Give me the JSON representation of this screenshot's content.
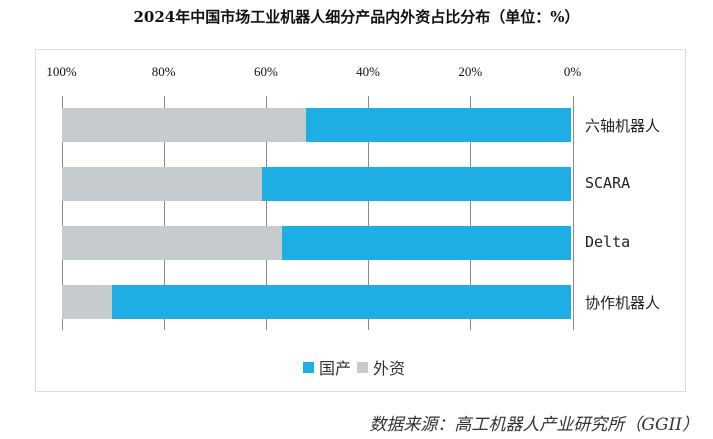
{
  "title": "2024年中国市场工业机器人细分产品内外资占比分布（单位：%）",
  "legend": {
    "domestic_label": "国产",
    "foreign_label": "外资",
    "domestic_color": "#1faee3",
    "foreign_color": "#c6cbce"
  },
  "axis": {
    "ticks": [
      "100%",
      "80%",
      "60%",
      "40%",
      "20%",
      "0%"
    ]
  },
  "categories": [
    {
      "label": "六轴机器人",
      "domestic": 52.1,
      "foreign": 47.9
    },
    {
      "label": "SCARA",
      "domestic": 60.7,
      "foreign": 39.3
    },
    {
      "label": "Delta",
      "domestic": 56.8,
      "foreign": 43.2
    },
    {
      "label": "协作机器人",
      "domestic": 90.1,
      "foreign": 9.9
    }
  ],
  "source": "数据来源：高工机器人产业研究所（GGII）",
  "chart_data": {
    "type": "bar",
    "orientation": "horizontal-stacked-100",
    "title": "2024年中国市场工业机器人细分产品内外资占比分布（单位：%）",
    "categories": [
      "六轴机器人",
      "SCARA",
      "Delta",
      "协作机器人"
    ],
    "series": [
      {
        "name": "国产",
        "color": "#1faee3",
        "values": [
          52.1,
          60.7,
          56.8,
          90.1
        ]
      },
      {
        "name": "外资",
        "color": "#c6cbce",
        "values": [
          47.9,
          39.3,
          43.2,
          9.9
        ]
      }
    ],
    "xlabel": "",
    "ylabel": "",
    "xlim": [
      100,
      0
    ],
    "x_reversed": true,
    "x_ticks": [
      "100%",
      "80%",
      "60%",
      "40%",
      "20%",
      "0%"
    ],
    "grid": true,
    "legend_position": "bottom",
    "annotation": "数据来源：高工机器人产业研究所（GGII）"
  }
}
